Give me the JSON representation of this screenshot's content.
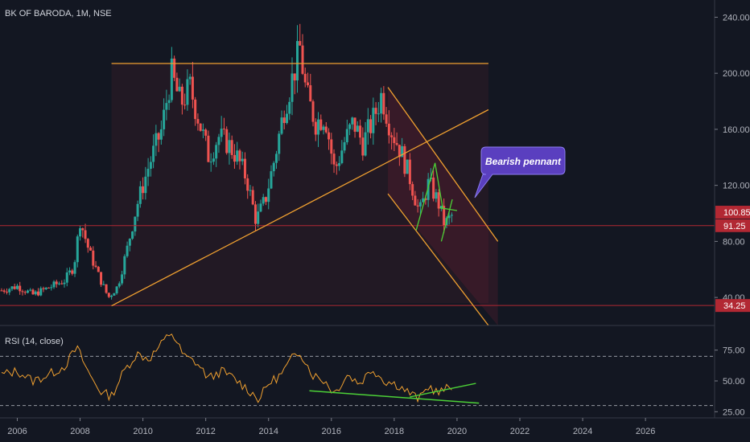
{
  "chart_data": {
    "type": "candlestick",
    "title": "BK OF BARODA, 1M, NSE",
    "price_axis": {
      "ticks": [
        "240.00",
        "200.00",
        "160.00",
        "120.00",
        "80.00",
        "40.00"
      ],
      "ylim": [
        20,
        250
      ]
    },
    "time_axis": {
      "ticks": [
        "2006",
        "2008",
        "2010",
        "2012",
        "2014",
        "2016",
        "2018",
        "2020",
        "2022",
        "2024",
        "2026"
      ],
      "xlim": [
        2005.45,
        2028.2
      ]
    },
    "price_labels": [
      {
        "text": "100.85",
        "value": 100.85,
        "color": "#b22833"
      },
      {
        "text": "91.25",
        "value": 91.25,
        "color": "#b22833"
      },
      {
        "text": "34.25",
        "value": 34.25,
        "color": "#b22833"
      }
    ],
    "horizontal_lines": [
      {
        "value": 91.25,
        "color": "#b22833"
      },
      {
        "value": 34.25,
        "color": "#b22833"
      }
    ],
    "annotation": {
      "text": "Bearish pennant"
    },
    "price_trend": [
      [
        2005.5,
        45
      ],
      [
        2006.0,
        48
      ],
      [
        2006.5,
        42
      ],
      [
        2007.0,
        47
      ],
      [
        2007.5,
        52
      ],
      [
        2007.8,
        62
      ],
      [
        2008.0,
        95
      ],
      [
        2008.3,
        72
      ],
      [
        2008.6,
        55
      ],
      [
        2008.9,
        40
      ],
      [
        2009.2,
        48
      ],
      [
        2009.5,
        75
      ],
      [
        2009.8,
        105
      ],
      [
        2010.2,
        135
      ],
      [
        2010.6,
        160
      ],
      [
        2010.9,
        200
      ],
      [
        2011.2,
        178
      ],
      [
        2011.5,
        190
      ],
      [
        2011.8,
        165
      ],
      [
        2012.1,
        140
      ],
      [
        2012.4,
        155
      ],
      [
        2012.7,
        150
      ],
      [
        2013.0,
        140
      ],
      [
        2013.3,
        125
      ],
      [
        2013.6,
        95
      ],
      [
        2013.9,
        110
      ],
      [
        2014.2,
        140
      ],
      [
        2014.5,
        175
      ],
      [
        2014.8,
        200
      ],
      [
        2015.0,
        218
      ],
      [
        2015.2,
        185
      ],
      [
        2015.5,
        165
      ],
      [
        2015.8,
        170
      ],
      [
        2016.1,
        130
      ],
      [
        2016.4,
        150
      ],
      [
        2016.7,
        165
      ],
      [
        2017.0,
        150
      ],
      [
        2017.3,
        165
      ],
      [
        2017.6,
        185
      ],
      [
        2017.9,
        160
      ],
      [
        2018.2,
        145
      ],
      [
        2018.5,
        125
      ],
      [
        2018.8,
        100
      ],
      [
        2019.1,
        122
      ],
      [
        2019.4,
        108
      ],
      [
        2019.6,
        92
      ],
      [
        2019.9,
        100
      ]
    ],
    "trendlines": [
      {
        "from": [
          2009.0,
          207
        ],
        "to": [
          2021.0,
          207
        ],
        "color": "#f0a030"
      },
      {
        "from": [
          2009.0,
          34
        ],
        "to": [
          2021.0,
          174
        ],
        "color": "#f0a030"
      },
      {
        "from": [
          2017.8,
          190
        ],
        "to": [
          2021.3,
          80
        ],
        "color": "#f0a030"
      },
      {
        "from": [
          2017.8,
          114
        ],
        "to": [
          2021.0,
          20
        ],
        "color": "#f0a030"
      },
      {
        "from": [
          2018.7,
          88
        ],
        "to": [
          2019.3,
          136
        ],
        "color": "#4cd137"
      },
      {
        "from": [
          2019.3,
          136
        ],
        "to": [
          2019.55,
          103
        ],
        "color": "#4cd137"
      },
      {
        "from": [
          2019.5,
          80
        ],
        "to": [
          2019.85,
          110
        ],
        "color": "#4cd137"
      },
      {
        "from": [
          2019.45,
          104
        ],
        "to": [
          2020.0,
          102
        ],
        "color": "#4cd137"
      }
    ],
    "channel_fill": {
      "rect": {
        "x": [
          2009.0,
          2021.0
        ],
        "y": [
          36,
          207
        ]
      },
      "polygon": [
        [
          2017.8,
          190
        ],
        [
          2021.3,
          80
        ],
        [
          2021.3,
          20
        ],
        [
          2017.8,
          114
        ]
      ]
    },
    "rsi": {
      "title": "RSI (14, close)",
      "ticks": [
        "75.00",
        "50.00",
        "25.00"
      ],
      "ylim": [
        20,
        95
      ],
      "bands": [
        70,
        30
      ],
      "trend": [
        [
          2005.5,
          55
        ],
        [
          2006.0,
          58
        ],
        [
          2006.5,
          50
        ],
        [
          2007.0,
          55
        ],
        [
          2007.5,
          62
        ],
        [
          2007.9,
          77
        ],
        [
          2008.3,
          55
        ],
        [
          2008.7,
          40
        ],
        [
          2009.0,
          38
        ],
        [
          2009.4,
          58
        ],
        [
          2009.8,
          72
        ],
        [
          2010.2,
          68
        ],
        [
          2010.6,
          80
        ],
        [
          2010.9,
          90
        ],
        [
          2011.3,
          70
        ],
        [
          2011.7,
          65
        ],
        [
          2012.1,
          52
        ],
        [
          2012.5,
          58
        ],
        [
          2012.9,
          52
        ],
        [
          2013.3,
          44
        ],
        [
          2013.7,
          35
        ],
        [
          2014.0,
          48
        ],
        [
          2014.4,
          55
        ],
        [
          2014.8,
          70
        ],
        [
          2015.0,
          74
        ],
        [
          2015.4,
          55
        ],
        [
          2015.8,
          50
        ],
        [
          2016.1,
          40
        ],
        [
          2016.5,
          55
        ],
        [
          2016.9,
          48
        ],
        [
          2017.3,
          60
        ],
        [
          2017.7,
          50
        ],
        [
          2018.1,
          47
        ],
        [
          2018.5,
          40
        ],
        [
          2018.8,
          35
        ],
        [
          2019.1,
          46
        ],
        [
          2019.4,
          40
        ],
        [
          2019.7,
          44
        ],
        [
          2019.9,
          45
        ]
      ],
      "trendlines": [
        {
          "from": [
            2015.3,
            42
          ],
          "to": [
            2020.7,
            32
          ],
          "color": "#4cd137"
        },
        {
          "from": [
            2018.5,
            37
          ],
          "to": [
            2020.6,
            48
          ],
          "color": "#4cd137"
        }
      ]
    },
    "colors": {
      "background": "#131722",
      "up": "#26a69a",
      "down": "#ef5350",
      "text": "#b2b5be",
      "callout": "#5a3fbf"
    }
  }
}
